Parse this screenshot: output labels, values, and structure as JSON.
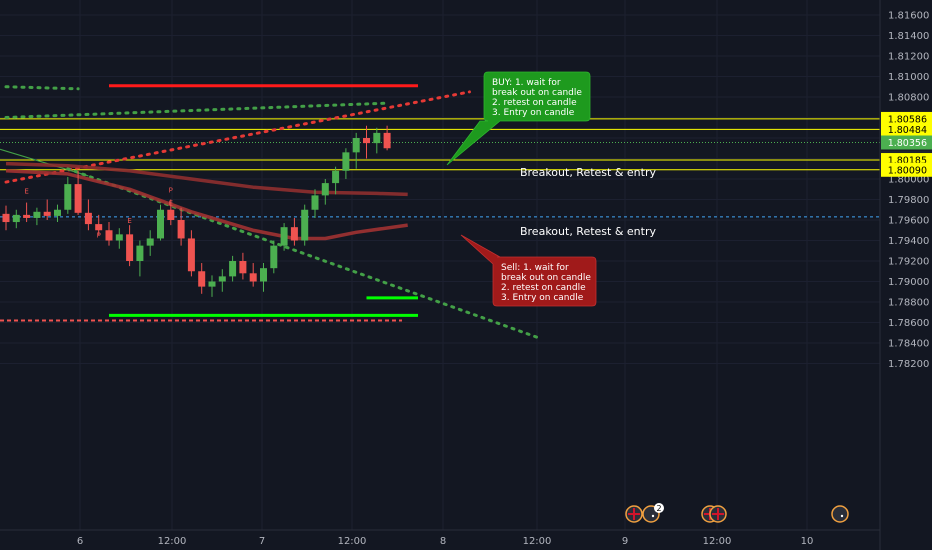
{
  "colors": {
    "background": "#131722",
    "grid": "#1e222d",
    "axis_text": "#b2b5be",
    "up": "#26a69a",
    "up_candle": "#4caf50",
    "down_candle": "#ef5350",
    "yellow_line": "#ffff00",
    "red_bar": "#ff1a1a",
    "green_bar": "#00ff00",
    "buy_box": "#1e9a1e",
    "sell_box": "#a01a1a",
    "current_price": "#4caf50",
    "dashed_blue": "#2962ff"
  },
  "chart_data": {
    "type": "candlestick",
    "instrument_timeframe": "GBPAUD intraday (approx)",
    "y_ticks": [
      "1.81600",
      "1.81400",
      "1.81200",
      "1.81000",
      "1.80800",
      "1.80600",
      "1.80400",
      "1.80200",
      "1.80000",
      "1.79800",
      "1.79600",
      "1.79400",
      "1.79200",
      "1.79000",
      "1.78800",
      "1.78600",
      "1.78400",
      "1.78200"
    ],
    "y_range": [
      1.8211,
      1.8183
    ],
    "x_ticks": [
      "6",
      "12:00",
      "7",
      "12:00",
      "8",
      "12:00",
      "9",
      "12:00",
      "10"
    ],
    "price_tags": [
      {
        "label": "1.80586",
        "price": 1.80586,
        "style": "yellow"
      },
      {
        "label": "1.80484",
        "price": 1.80484,
        "style": "yellow"
      },
      {
        "label": "1.80356",
        "price": 1.80356,
        "style": "green"
      },
      {
        "label": "50:49",
        "style": "dark",
        "note": "countdown"
      },
      {
        "label": "1.80185",
        "price": 1.80185,
        "style": "yellow"
      },
      {
        "label": "1.80090",
        "price": 1.8009,
        "style": "yellow"
      }
    ],
    "horizontal_levels": [
      1.80586,
      1.80484,
      1.80185,
      1.8009
    ],
    "dotted_current": 1.80356,
    "dashed_blue": 1.7963,
    "candles": [
      [
        1.7966,
        1.7974,
        1.795,
        1.7958
      ],
      [
        1.7958,
        1.797,
        1.7952,
        1.7965
      ],
      [
        1.7965,
        1.7977,
        1.7958,
        1.7962
      ],
      [
        1.7962,
        1.7972,
        1.7955,
        1.7968
      ],
      [
        1.7968,
        1.798,
        1.796,
        1.7964
      ],
      [
        1.7964,
        1.7975,
        1.7958,
        1.797
      ],
      [
        1.797,
        1.8002,
        1.7966,
        1.7995
      ],
      [
        1.7995,
        1.8008,
        1.7965,
        1.7967
      ],
      [
        1.7967,
        1.798,
        1.795,
        1.7956
      ],
      [
        1.7956,
        1.7965,
        1.7945,
        1.795
      ],
      [
        1.795,
        1.7958,
        1.7935,
        1.794
      ],
      [
        1.794,
        1.7952,
        1.7932,
        1.7946
      ],
      [
        1.7946,
        1.7955,
        1.7915,
        1.792
      ],
      [
        1.792,
        1.794,
        1.7905,
        1.7935
      ],
      [
        1.7935,
        1.795,
        1.7925,
        1.7942
      ],
      [
        1.7942,
        1.7975,
        1.794,
        1.797
      ],
      [
        1.797,
        1.798,
        1.7955,
        1.796
      ],
      [
        1.796,
        1.7972,
        1.7935,
        1.7942
      ],
      [
        1.7942,
        1.795,
        1.7905,
        1.791
      ],
      [
        1.791,
        1.7918,
        1.7888,
        1.7895
      ],
      [
        1.7895,
        1.7906,
        1.7885,
        1.79
      ],
      [
        1.79,
        1.7912,
        1.789,
        1.7905
      ],
      [
        1.7905,
        1.7925,
        1.79,
        1.792
      ],
      [
        1.792,
        1.7928,
        1.7902,
        1.7908
      ],
      [
        1.7908,
        1.7918,
        1.7895,
        1.79
      ],
      [
        1.79,
        1.7918,
        1.789,
        1.7913
      ],
      [
        1.7913,
        1.794,
        1.7908,
        1.7935
      ],
      [
        1.7935,
        1.7957,
        1.793,
        1.7953
      ],
      [
        1.7953,
        1.7962,
        1.7935,
        1.794
      ],
      [
        1.794,
        1.7975,
        1.7935,
        1.797
      ],
      [
        1.797,
        1.799,
        1.7962,
        1.7984
      ],
      [
        1.7984,
        1.8,
        1.7975,
        1.7996
      ],
      [
        1.7996,
        1.8012,
        1.7985,
        1.8008
      ],
      [
        1.8008,
        1.803,
        1.8,
        1.8026
      ],
      [
        1.8026,
        1.8045,
        1.801,
        1.804
      ],
      [
        1.804,
        1.8052,
        1.802,
        1.8035
      ],
      [
        1.8035,
        1.805,
        1.8025,
        1.8045
      ],
      [
        1.8045,
        1.8052,
        1.8028,
        1.803
      ]
    ],
    "moving_averages": [
      {
        "name": "slow",
        "color": "#8f2f2f",
        "points": [
          [
            0,
            1.8015
          ],
          [
            6,
            1.8013
          ],
          [
            12,
            1.8008
          ],
          [
            18,
            1.8
          ],
          [
            24,
            1.7992
          ],
          [
            30,
            1.7987
          ],
          [
            36,
            1.7986
          ],
          [
            39,
            1.7985
          ]
        ]
      },
      {
        "name": "fast",
        "color": "#a13232",
        "points": [
          [
            0,
            1.8008
          ],
          [
            6,
            1.8005
          ],
          [
            12,
            1.799
          ],
          [
            18,
            1.7968
          ],
          [
            24,
            1.795
          ],
          [
            28,
            1.7942
          ],
          [
            31,
            1.7942
          ],
          [
            34,
            1.7948
          ],
          [
            39,
            1.7955
          ]
        ]
      }
    ],
    "trendlines": [
      {
        "kind": "dotted",
        "color": "#e53935",
        "from": [
          0,
          1.7997
        ],
        "to": [
          45,
          1.8085
        ]
      },
      {
        "kind": "dotted",
        "color": "#43a047",
        "from": [
          0,
          1.806
        ],
        "to": [
          37,
          1.8074
        ]
      },
      {
        "kind": "dotted",
        "color": "#43a047",
        "from": [
          0,
          1.809
        ],
        "to": [
          7,
          1.8088
        ]
      },
      {
        "kind": "dotted",
        "color": "#43a047",
        "from": [
          6,
          1.801
        ],
        "to": [
          52,
          1.7844
        ]
      }
    ],
    "solid_segments": [
      {
        "color": "#ff1a1a",
        "price": 1.8091,
        "from": 10,
        "to": 40
      },
      {
        "color": "#00ff00",
        "price": 1.7867,
        "from": 10,
        "to": 40
      },
      {
        "color": "#00ff00",
        "price": 1.7884,
        "from": 35,
        "to": 40
      }
    ],
    "dashed_red": 1.7862,
    "annotations": [
      {
        "text": "Breakout, Retest & entry",
        "at_price": 1.80535
      },
      {
        "text": "Breakout, Retest & entry",
        "at_price": 1.80137
      }
    ]
  },
  "buy_callout": {
    "lines": [
      "BUY: 1. wait for",
      "break out on candle",
      "2. retest on candle",
      "3. Entry on candle"
    ]
  },
  "sell_callout": {
    "lines": [
      "Sell: 1. wait for",
      "break out on candle",
      "2. retest on candle",
      "3. Entry on candle"
    ]
  },
  "event_markers": [
    {
      "label": "GB",
      "count": ""
    },
    {
      "label": "AU",
      "count": "2"
    },
    {
      "label": "GB",
      "count": ""
    },
    {
      "label": "GB",
      "count": ""
    },
    {
      "label": "AU",
      "count": ""
    }
  ],
  "candle_labels": [
    "E",
    "E",
    "P",
    "E",
    "P"
  ]
}
